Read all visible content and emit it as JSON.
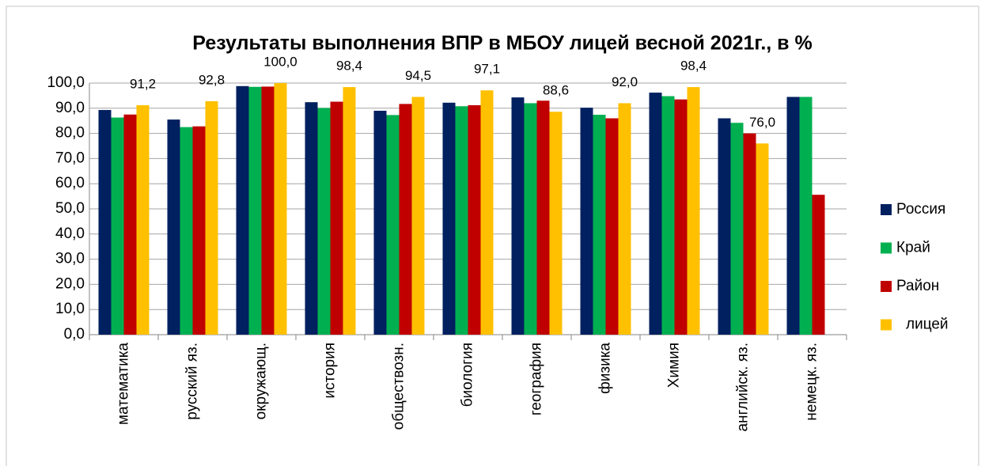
{
  "chart_data": {
    "type": "bar",
    "title": "Результаты выполнения ВПР в МБОУ лицей весной 2021г., в %",
    "categories": [
      "математика",
      "русский яз.",
      "окружающ.",
      "история",
      "обществозн.",
      "биология",
      "география",
      "физика",
      "Химия",
      "английск. яз.",
      "немецк. яз."
    ],
    "series": [
      {
        "name": "Россия",
        "color": "#002060",
        "values": [
          89.3,
          85.5,
          98.8,
          92.4,
          89.0,
          92.2,
          94.3,
          90.2,
          96.2,
          86.0,
          94.5
        ]
      },
      {
        "name": "Край",
        "color": "#00b050",
        "values": [
          86.3,
          82.5,
          98.5,
          90.1,
          87.3,
          90.8,
          92.0,
          87.4,
          94.8,
          84.2,
          94.5
        ]
      },
      {
        "name": "Район",
        "color": "#c00000",
        "values": [
          87.5,
          82.8,
          98.6,
          92.6,
          91.7,
          91.2,
          93.0,
          86.0,
          93.5,
          80.0,
          55.6
        ]
      },
      {
        "name": "лицей",
        "color": "#ffc000",
        "values": [
          91.2,
          92.8,
          100.0,
          98.4,
          94.5,
          97.1,
          88.6,
          92.0,
          98.4,
          76.0,
          null
        ],
        "value_labels": [
          "91,2",
          "92,8",
          "100,0",
          "98,4",
          "94,5",
          "97,1",
          "88,6",
          "92,0",
          "98,4",
          "76,0",
          null
        ]
      }
    ],
    "ylim": [
      0,
      100
    ],
    "yticks": [
      {
        "value": 0,
        "label": "0,0"
      },
      {
        "value": 10,
        "label": "10,0"
      },
      {
        "value": 20,
        "label": "20,0"
      },
      {
        "value": 30,
        "label": "30,0"
      },
      {
        "value": 40,
        "label": "40,0"
      },
      {
        "value": 50,
        "label": "50,0"
      },
      {
        "value": 60,
        "label": "60,0"
      },
      {
        "value": 70,
        "label": "70,0"
      },
      {
        "value": 80,
        "label": "80,0"
      },
      {
        "value": 90,
        "label": "90,0"
      },
      {
        "value": 100,
        "label": "100,0"
      }
    ],
    "grid": true,
    "legend": "right"
  }
}
